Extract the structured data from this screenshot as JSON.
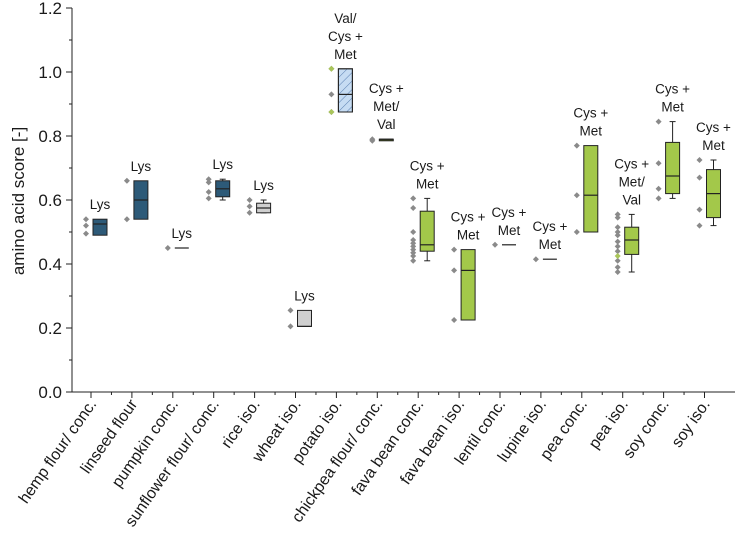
{
  "chart_data": {
    "type": "box",
    "ylabel": "amino acid score [-]",
    "xlabel": "",
    "ylim": [
      0.0,
      1.2
    ],
    "yticks": [
      "0.0",
      "0.2",
      "0.4",
      "0.6",
      "0.8",
      "1.0",
      "1.2"
    ],
    "grid": false,
    "colors": {
      "dark": "#2d5a78",
      "grey": "#cfcfcf",
      "blue_hatched": "#c6dcf3",
      "olive": "#5b6b20",
      "green": "#a3c84a",
      "point": "#8a8a8a",
      "highlight": "#a9c55a"
    },
    "categories": [
      {
        "name": "hemp flour/ conc.",
        "limiting": [
          "Lys"
        ],
        "color": "dark",
        "box": {
          "q1": 0.49,
          "median": 0.525,
          "q3": 0.54
        },
        "points": [
          0.54,
          0.52,
          0.495
        ]
      },
      {
        "name": "linseed flour",
        "limiting": [
          "Lys"
        ],
        "color": "dark",
        "box": {
          "q1": 0.54,
          "median": 0.6,
          "q3": 0.66
        },
        "points": [
          0.66,
          0.54
        ]
      },
      {
        "name": "pumpkin conc.",
        "limiting": [
          "Lys"
        ],
        "color": "dark",
        "box": {
          "q1": 0.45,
          "median": 0.45,
          "q3": 0.45
        },
        "points": [
          0.45
        ]
      },
      {
        "name": "sunflower flour/ conc.",
        "limiting": [
          "Lys"
        ],
        "color": "dark",
        "box": {
          "q1": 0.61,
          "median": 0.635,
          "q3": 0.66,
          "whisker_low": 0.6,
          "whisker_high": 0.665
        },
        "points": [
          0.665,
          0.655,
          0.625,
          0.605
        ]
      },
      {
        "name": "rice iso.",
        "limiting": [
          "Lys"
        ],
        "color": "grey",
        "box": {
          "q1": 0.56,
          "median": 0.575,
          "q3": 0.59,
          "whisker_low": 0.56,
          "whisker_high": 0.6
        },
        "points": [
          0.6,
          0.58,
          0.56
        ]
      },
      {
        "name": "wheat iso.",
        "limiting": [
          "Lys"
        ],
        "color": "grey",
        "box": {
          "q1": 0.205,
          "median": 0.205,
          "q3": 0.255
        },
        "points": [
          0.255,
          0.205
        ]
      },
      {
        "name": "potato iso.",
        "limiting": [
          "Val/",
          "Cys +",
          "Met"
        ],
        "color": "blue_hatched",
        "box": {
          "q1": 0.875,
          "median": 0.93,
          "q3": 1.01
        },
        "points": [
          1.01,
          0.93,
          0.875
        ],
        "highlight_points": [
          1.01,
          0.875
        ]
      },
      {
        "name": "chickpea flour/ conc.",
        "limiting": [
          "Cys +",
          "Met/",
          "Val"
        ],
        "color": "olive",
        "box": {
          "q1": 0.785,
          "median": 0.79,
          "q3": 0.79
        },
        "points": [
          0.79,
          0.785
        ]
      },
      {
        "name": "fava bean conc.",
        "limiting": [
          "Cys +",
          "Met"
        ],
        "color": "green",
        "box": {
          "q1": 0.44,
          "median": 0.46,
          "q3": 0.565,
          "whisker_low": 0.41,
          "whisker_high": 0.605
        },
        "points": [
          0.605,
          0.575,
          0.5,
          0.475,
          0.465,
          0.455,
          0.445,
          0.435,
          0.425,
          0.41
        ]
      },
      {
        "name": "fava bean iso.",
        "limiting": [
          "Cys +",
          "Met"
        ],
        "color": "green",
        "box": {
          "q1": 0.225,
          "median": 0.38,
          "q3": 0.445
        },
        "points": [
          0.445,
          0.38,
          0.225
        ]
      },
      {
        "name": "lentil conc.",
        "limiting": [
          "Cys +",
          "Met"
        ],
        "color": "green",
        "box": {
          "q1": 0.46,
          "median": 0.46,
          "q3": 0.46
        },
        "points": [
          0.46
        ]
      },
      {
        "name": "lupine iso.",
        "limiting": [
          "Cys +",
          "Met"
        ],
        "color": "green",
        "box": {
          "q1": 0.415,
          "median": 0.415,
          "q3": 0.415
        },
        "points": [
          0.415
        ]
      },
      {
        "name": "pea conc.",
        "limiting": [
          "Cys +",
          "Met"
        ],
        "color": "green",
        "box": {
          "q1": 0.5,
          "median": 0.615,
          "q3": 0.77
        },
        "points": [
          0.77,
          0.615,
          0.5
        ]
      },
      {
        "name": "pea iso.",
        "limiting": [
          "Cys +",
          "Met/",
          "Val"
        ],
        "color": "green",
        "box": {
          "q1": 0.43,
          "median": 0.475,
          "q3": 0.515,
          "whisker_low": 0.375,
          "whisker_high": 0.555
        },
        "points": [
          0.555,
          0.545,
          0.515,
          0.5,
          0.49,
          0.47,
          0.455,
          0.44,
          0.41,
          0.39,
          0.375
        ],
        "highlight_points": [
          0.425
        ]
      },
      {
        "name": "soy conc.",
        "limiting": [
          "Cys +",
          "Met"
        ],
        "color": "green",
        "box": {
          "q1": 0.62,
          "median": 0.675,
          "q3": 0.78,
          "whisker_low": 0.605,
          "whisker_high": 0.845
        },
        "points": [
          0.845,
          0.715,
          0.635,
          0.605
        ]
      },
      {
        "name": "soy iso.",
        "limiting": [
          "Cys +",
          "Met"
        ],
        "color": "green",
        "box": {
          "q1": 0.545,
          "median": 0.62,
          "q3": 0.695,
          "whisker_low": 0.52,
          "whisker_high": 0.725
        },
        "points": [
          0.725,
          0.67,
          0.57,
          0.52
        ]
      }
    ]
  }
}
